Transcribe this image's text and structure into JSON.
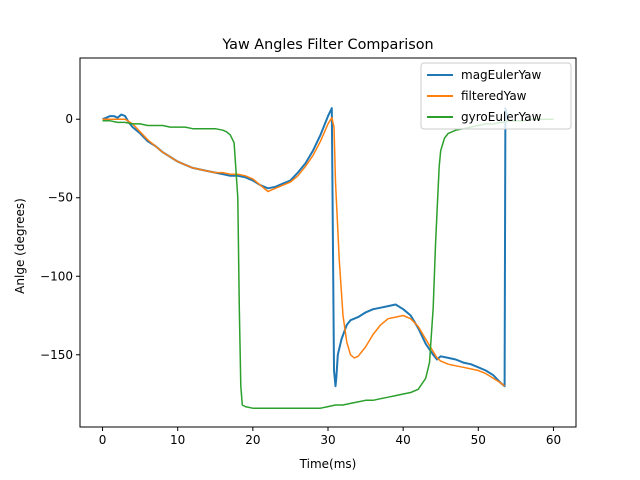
{
  "chart_data": {
    "type": "line",
    "title": "Yaw Angles Filter Comparison",
    "xlabel": "Time(ms)",
    "ylabel": "Anlge (degrees)",
    "xlim": [
      -3,
      63
    ],
    "ylim": [
      -196,
      39
    ],
    "xticks": [
      0,
      10,
      20,
      30,
      40,
      50,
      60
    ],
    "yticks": [
      0,
      -50,
      -100,
      -150
    ],
    "grid": false,
    "legend_position": "top-right",
    "series": [
      {
        "name": "magEulerYaw",
        "color": "#1f77b4",
        "x": [
          0,
          0.5,
          1,
          1.5,
          2,
          2.5,
          3,
          3.5,
          4,
          5,
          6,
          7,
          8,
          9,
          10,
          11,
          12,
          13,
          14,
          15,
          16,
          17,
          18,
          19,
          20,
          21,
          22,
          23,
          24,
          25,
          26,
          27,
          28,
          29,
          30,
          30.5,
          30.8,
          31.0,
          31.1,
          31.3,
          31.8,
          32.5,
          33,
          34,
          35,
          36,
          37,
          38,
          39,
          40,
          41,
          42,
          43,
          44,
          44.5,
          45,
          46,
          47,
          48,
          49,
          50,
          51,
          52,
          53,
          53.5,
          53.6,
          53.8,
          54
        ],
        "y": [
          0,
          1,
          2,
          2,
          1,
          3,
          2,
          -2,
          -5,
          -9,
          -14,
          -17,
          -21,
          -24,
          -27,
          -29,
          -31,
          -32,
          -33,
          -34,
          -35,
          -36,
          -36,
          -37,
          -39,
          -42,
          -44,
          -43,
          -41,
          -39,
          -34,
          -28,
          -20,
          -10,
          2,
          7,
          -160,
          -170,
          -165,
          -150,
          -140,
          -131,
          -128,
          -126,
          -123,
          -121,
          -120,
          -119,
          -118,
          -121,
          -125,
          -133,
          -143,
          -150,
          -153,
          -151,
          -152,
          -153,
          -155,
          -156,
          -158,
          -160,
          -163,
          -168,
          -170,
          7,
          3,
          0
        ]
      },
      {
        "name": "filteredYaw",
        "color": "#ff7f0e",
        "x": [
          0,
          1,
          2,
          3,
          4,
          5,
          6,
          7,
          8,
          9,
          10,
          11,
          12,
          13,
          14,
          15,
          16,
          17,
          18,
          19,
          20,
          21,
          22,
          23,
          24,
          25,
          26,
          27,
          28,
          29,
          30,
          30.5,
          30.8,
          31.0,
          31.5,
          32,
          32.5,
          33,
          33.5,
          34,
          35,
          36,
          37,
          38,
          39,
          40,
          41,
          42,
          43,
          44,
          44.5,
          45,
          46,
          47,
          48,
          49,
          50,
          51,
          52,
          53,
          53.5
        ],
        "y": [
          0,
          0,
          0,
          0,
          -3,
          -8,
          -13,
          -17,
          -21,
          -24,
          -27,
          -29,
          -31,
          -32,
          -33,
          -34,
          -34,
          -35,
          -35,
          -36,
          -38,
          -42,
          -46,
          -44,
          -42,
          -40,
          -36,
          -30,
          -23,
          -14,
          -3,
          1,
          -5,
          -40,
          -90,
          -125,
          -142,
          -150,
          -152,
          -151,
          -145,
          -137,
          -131,
          -127,
          -126,
          -125,
          -127,
          -132,
          -140,
          -148,
          -152,
          -154,
          -156,
          -157,
          -158,
          -159,
          -160,
          -162,
          -165,
          -168,
          -170
        ]
      },
      {
        "name": "gyroEulerYaw",
        "color": "#2ca02c",
        "x": [
          0,
          1,
          2,
          3,
          4,
          5,
          6,
          7,
          8,
          9,
          10,
          11,
          12,
          13,
          14,
          15,
          16,
          16.5,
          17,
          17.5,
          18,
          18.2,
          18.4,
          18.6,
          19,
          20,
          21,
          22,
          23,
          24,
          25,
          26,
          27,
          28,
          29,
          30,
          31,
          32,
          33,
          34,
          35,
          36,
          37,
          38,
          39,
          40,
          41,
          42,
          43,
          43.5,
          44,
          44.3,
          44.6,
          44.8,
          45,
          45.5,
          46,
          47,
          48,
          49,
          50,
          51,
          52,
          53,
          53.5,
          54,
          55,
          56,
          57,
          58,
          59,
          60
        ],
        "y": [
          -1,
          -1,
          -2,
          -2,
          -3,
          -3,
          -4,
          -4,
          -4,
          -5,
          -5,
          -5,
          -6,
          -6,
          -6,
          -6,
          -7,
          -8,
          -10,
          -15,
          -50,
          -120,
          -170,
          -182,
          -183,
          -184,
          -184,
          -184,
          -184,
          -184,
          -184,
          -184,
          -184,
          -184,
          -184,
          -183,
          -182,
          -182,
          -181,
          -180,
          -179,
          -179,
          -178,
          -177,
          -176,
          -175,
          -174,
          -172,
          -165,
          -155,
          -120,
          -80,
          -50,
          -30,
          -20,
          -12,
          -9,
          -7,
          -6,
          -5,
          -4,
          -3,
          -3,
          -2,
          -2,
          -1,
          -1,
          -1,
          0,
          0,
          0,
          0
        ]
      }
    ]
  }
}
